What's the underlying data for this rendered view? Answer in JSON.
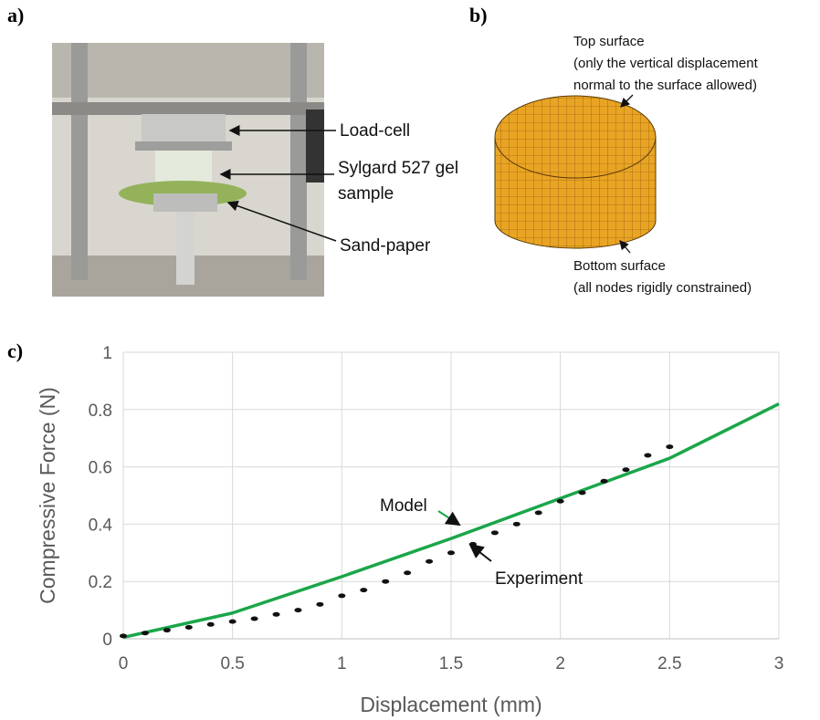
{
  "panels": {
    "a": {
      "label": "a)",
      "annotations": [
        "Load-cell",
        "Sylgard 527 gel",
        "sample",
        "Sand-paper"
      ]
    },
    "b": {
      "label": "b)",
      "top_surface": [
        "Top surface",
        "(only the vertical displacement",
        "normal to the surface allowed)"
      ],
      "bottom_surface": [
        "Bottom surface",
        "(all nodes rigidly constrained)"
      ]
    },
    "c": {
      "label": "c)"
    }
  },
  "chart_data": {
    "type": "line",
    "x_label": "Displacement (mm)",
    "y_label": "Compressive Force (N)",
    "xlim": [
      0,
      3
    ],
    "ylim": [
      0,
      1
    ],
    "xticks": [
      0,
      0.5,
      1,
      1.5,
      2,
      2.5,
      3
    ],
    "yticks": [
      0,
      0.2,
      0.4,
      0.6,
      0.8,
      1
    ],
    "grid": true,
    "series": [
      {
        "name": "Model",
        "color": "#1aa64a",
        "style": "line",
        "x": [
          0,
          0.5,
          1,
          1.5,
          2,
          2.5,
          3
        ],
        "values": [
          0.005,
          0.09,
          0.217,
          0.35,
          0.49,
          0.63,
          0.82
        ]
      },
      {
        "name": "Experiment",
        "color": "#111111",
        "style": "dots",
        "x": [
          0,
          0.1,
          0.2,
          0.3,
          0.4,
          0.5,
          0.6,
          0.7,
          0.8,
          0.9,
          1.0,
          1.1,
          1.2,
          1.3,
          1.4,
          1.5,
          1.6,
          1.7,
          1.8,
          1.9,
          2.0,
          2.1,
          2.2,
          2.3,
          2.4,
          2.5
        ],
        "values": [
          0.01,
          0.02,
          0.03,
          0.04,
          0.05,
          0.06,
          0.07,
          0.085,
          0.1,
          0.12,
          0.15,
          0.17,
          0.2,
          0.23,
          0.27,
          0.3,
          0.33,
          0.37,
          0.4,
          0.44,
          0.48,
          0.51,
          0.55,
          0.59,
          0.64,
          0.67
        ]
      }
    ]
  }
}
